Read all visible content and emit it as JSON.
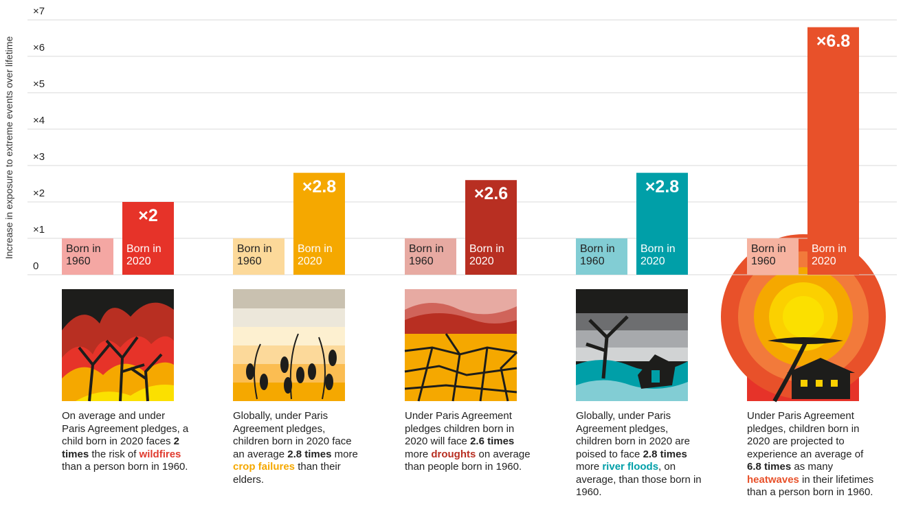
{
  "chart_data": {
    "type": "bar",
    "y_label": "Increase in exposure to extreme events over lifetime",
    "ylim": [
      0,
      7
    ],
    "yticks": [
      0,
      {
        "value": 1,
        "label": "×1"
      },
      {
        "value": 2,
        "label": "×2"
      },
      {
        "value": 3,
        "label": "×3"
      },
      {
        "value": 4,
        "label": "×4"
      },
      {
        "value": 5,
        "label": "×5"
      },
      {
        "value": 6,
        "label": "×6"
      },
      {
        "value": 7,
        "label": "×7"
      }
    ],
    "grid": true,
    "series": [
      {
        "name": "Born in 1960",
        "colors": [
          "#f4a7a3",
          "#fcd99a",
          "#e7aaa2",
          "#82cdd4",
          "#f6b3a0"
        ],
        "values": [
          1,
          1,
          1,
          1,
          1
        ]
      },
      {
        "name": "Born in 2020",
        "colors": [
          "#e63329",
          "#f5a800",
          "#b82f22",
          "#009fa8",
          "#e8512a"
        ],
        "values": [
          2,
          2.8,
          2.6,
          2.8,
          6.8
        ],
        "value_labels": [
          "×2",
          "×2.8",
          "×2.6",
          "×2.8",
          "×6.8"
        ]
      }
    ],
    "captions": [
      [
        {
          "text": "On average and under Paris Agreement pledges, a child born in 2020 faces "
        },
        {
          "text": "2 times",
          "bold": true
        },
        {
          "text": " the risk of "
        },
        {
          "text": "wildfires",
          "bold": true,
          "color": "#e03a2e"
        },
        {
          "text": " than a person born in 1960."
        }
      ],
      [
        {
          "text": "Globally, under Paris Agreement pledges, children born in 2020 face an average "
        },
        {
          "text": "2.8 times",
          "bold": true
        },
        {
          "text": " more "
        },
        {
          "text": "crop failures",
          "bold": true,
          "color": "#f5a800"
        },
        {
          "text": " than their elders."
        }
      ],
      [
        {
          "text": "Under Paris Agreement pledges children born in 2020 will face "
        },
        {
          "text": "2.6 times",
          "bold": true
        },
        {
          "text": " more "
        },
        {
          "text": "droughts",
          "bold": true,
          "color": "#b82f22"
        },
        {
          "text": " on average than people born in 1960."
        }
      ],
      [
        {
          "text": "Globally, under Paris Agreement pledges, children born in 2020 are poised to face "
        },
        {
          "text": "2.8 times",
          "bold": true
        },
        {
          "text": " more "
        },
        {
          "text": "river floods",
          "bold": true,
          "color": "#009fa8"
        },
        {
          "text": ", on average, than those born in 1960."
        }
      ],
      [
        {
          "text": "Under Paris Agreement pledges, children born in 2020 are projected to experience an average of "
        },
        {
          "text": "6.8 times",
          "bold": true
        },
        {
          "text": " as many "
        },
        {
          "text": "heatwaves",
          "bold": true,
          "color": "#e8512a"
        },
        {
          "text": " in their lifetimes than a person born in 1960."
        }
      ]
    ]
  }
}
